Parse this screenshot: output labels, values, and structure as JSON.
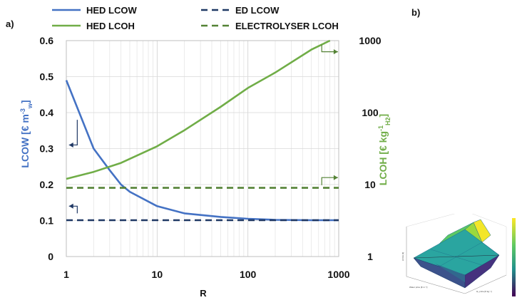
{
  "panels": {
    "a": "a)",
    "b": "b)"
  },
  "legend": {
    "items": [
      {
        "label": "HED LCOW",
        "color": "#4472C4",
        "dash": false
      },
      {
        "label": "ED LCOW",
        "color": "#1F3864",
        "dash": true
      },
      {
        "label": "HED LCOH",
        "color": "#70AD47",
        "dash": false
      },
      {
        "label": "ELECTROLYSER LCOH",
        "color": "#548235",
        "dash": true
      }
    ]
  },
  "chart_data": [
    {
      "type": "line",
      "xlabel": "R",
      "xscale": "log",
      "xlim": [
        1,
        1000
      ],
      "xticks": [
        "1",
        "10",
        "100",
        "1000"
      ],
      "ylabel_left": {
        "main": "LCOW [€ m",
        "sup": "-3",
        "sub": "w",
        "close": "]"
      },
      "ylim_left": [
        0,
        0.6
      ],
      "yticks_left": [
        "0",
        "0.1",
        "0.2",
        "0.3",
        "0.4",
        "0.5",
        "0.6"
      ],
      "ylabel_right": {
        "main": "LCOH [€ kg",
        "sup": "-1",
        "sub": "H2",
        "close": "]"
      },
      "yscale_right": "log",
      "ylim_right": [
        1,
        1000
      ],
      "yticks_right": [
        "1",
        "10",
        "100",
        "1000"
      ],
      "grid": true,
      "legend_position": "top",
      "colors": {
        "hed_lcow": "#4472C4",
        "ed_lcow": "#1F3864",
        "hed_lcoh": "#70AD47",
        "electrolyser_lcoh": "#548235"
      },
      "series": [
        {
          "name": "HED LCOW",
          "axis": "left",
          "style": "solid",
          "x": [
            1,
            2,
            3,
            4,
            5,
            10,
            20,
            50,
            100,
            200,
            500,
            1000
          ],
          "y": [
            0.49,
            0.3,
            0.24,
            0.2,
            0.18,
            0.14,
            0.12,
            0.11,
            0.105,
            0.102,
            0.101,
            0.101
          ]
        },
        {
          "name": "ED LCOW",
          "axis": "left",
          "style": "dashed",
          "x": [
            1,
            1000
          ],
          "y": [
            0.101,
            0.101
          ]
        },
        {
          "name": "HED LCOH",
          "axis": "right",
          "style": "solid",
          "x": [
            1,
            2,
            4,
            10,
            20,
            50,
            100,
            200,
            500,
            800
          ],
          "y": [
            12,
            15,
            20,
            34,
            57,
            120,
            220,
            360,
            750,
            1000
          ]
        },
        {
          "name": "ELECTROLYSER LCOH",
          "axis": "right",
          "style": "dashed",
          "x": [
            1,
            1000
          ],
          "y": [
            9.0,
            9.0
          ]
        }
      ]
    }
  ],
  "inset": {
    "z_label": "LCOH [€]",
    "x_label": "Water price [€ m⁻³]",
    "y_label": "H₂ price [€ kg⁻¹]",
    "colorbar_top": "#FDE725",
    "colorbar_bottom": "#440154"
  }
}
